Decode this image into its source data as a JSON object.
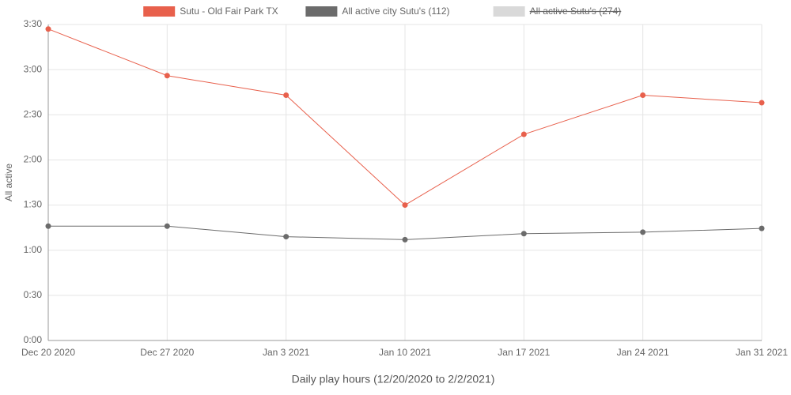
{
  "chart_data": {
    "type": "line",
    "y_label": "All active",
    "x_label": "Daily play hours (12/20/2020 to 2/2/2021)",
    "categories": [
      "Dec 20 2020",
      "Dec 27 2020",
      "Jan 3 2021",
      "Jan 10 2021",
      "Jan 17 2021",
      "Jan 24 2021",
      "Jan 31 2021"
    ],
    "series": [
      {
        "name": "Sutu - Old Fair Park TX",
        "color": "#e8604c",
        "values": [
          207,
          176,
          163,
          90,
          137,
          163,
          158
        ]
      },
      {
        "name": "All active city Sutu's (112)",
        "color": "#6b6b6b",
        "values": [
          76,
          76,
          69,
          67,
          71,
          72,
          74.5
        ]
      },
      {
        "name": "All active Sutu's (274)",
        "color": "#d9d9d9",
        "hidden": true,
        "values": [
          null,
          null,
          null,
          null,
          null,
          null,
          null
        ]
      }
    ],
    "ylim": [
      0,
      210
    ],
    "yticks": [
      {
        "value": 0,
        "label": "0:00"
      },
      {
        "value": 30,
        "label": "0:30"
      },
      {
        "value": 60,
        "label": "1:00"
      },
      {
        "value": 90,
        "label": "1:30"
      },
      {
        "value": 120,
        "label": "2:00"
      },
      {
        "value": 150,
        "label": "2:30"
      },
      {
        "value": 180,
        "label": "3:00"
      },
      {
        "value": 210,
        "label": "3:30"
      }
    ],
    "grid": true
  }
}
